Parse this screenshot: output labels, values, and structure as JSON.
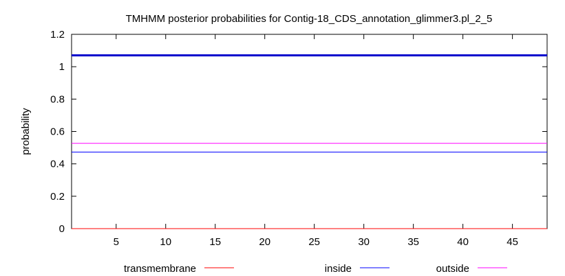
{
  "chart_data": {
    "type": "line",
    "title": "TMHMM posterior probabilities for Contig-18_CDS_annotation_glimmer3.pl_2_5",
    "xlabel": "",
    "ylabel": "probability",
    "xlim": [
      0.5,
      48.5
    ],
    "ylim": [
      0,
      1.2
    ],
    "x_ticks": [
      5,
      10,
      15,
      20,
      25,
      30,
      35,
      40,
      45
    ],
    "y_ticks": [
      0,
      0.2,
      0.4,
      0.6,
      0.8,
      1,
      1.2
    ],
    "y_tick_labels": [
      "0",
      "0.2",
      "0.4",
      "0.6",
      "0.8",
      "1",
      "1.2"
    ],
    "legend_position": "bottom",
    "series": [
      {
        "name": "transmembrane",
        "color": "#ff0000",
        "x": [
          1,
          48
        ],
        "y": [
          0,
          0
        ]
      },
      {
        "name": "inside",
        "color": "#0000ff",
        "x": [
          1,
          48
        ],
        "y": [
          0.473,
          0.473
        ]
      },
      {
        "name": "outside",
        "color": "#ff00ff",
        "x": [
          1,
          48
        ],
        "y": [
          0.527,
          0.527
        ]
      }
    ],
    "baseline": {
      "color": "#0000cc",
      "y": 1.07
    }
  }
}
